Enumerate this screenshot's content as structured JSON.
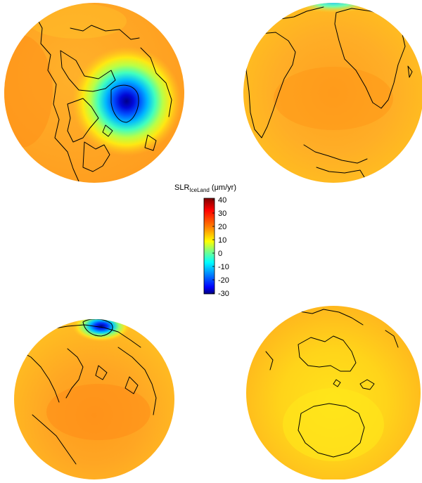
{
  "colorbar": {
    "title_main": "SLR",
    "title_sub": "IceLand",
    "title_units": " (μm/yr)",
    "ticks": [
      "40",
      "30",
      "20",
      "10",
      "0",
      "-10",
      "-20",
      "-30"
    ],
    "range": [
      -30,
      40
    ],
    "colormap": [
      "#7f0000",
      "#ff0000",
      "#ff7f00",
      "#ffff00",
      "#7fff7f",
      "#00ffff",
      "#007fff",
      "#0000ff",
      "#00007f"
    ]
  },
  "globes": [
    {
      "name": "globe-north-atlantic-arctic",
      "view": "Greenland, Arctic, North America, Eurasia",
      "feature": "strong negative anomaly centred on Iceland"
    },
    {
      "name": "globe-south-atlantic",
      "view": "South America, Africa, Antarctic Peninsula",
      "feature": "weak negative values near the top edge"
    },
    {
      "name": "globe-north-pacific",
      "view": "Pacific, Asia, North America, Arctic",
      "feature": "negative anomaly near Iceland at the rim"
    },
    {
      "name": "globe-southern-hemisphere",
      "view": "Australia, Antarctica, Southern Ocean",
      "feature": "near-uniform positive values"
    }
  ]
}
